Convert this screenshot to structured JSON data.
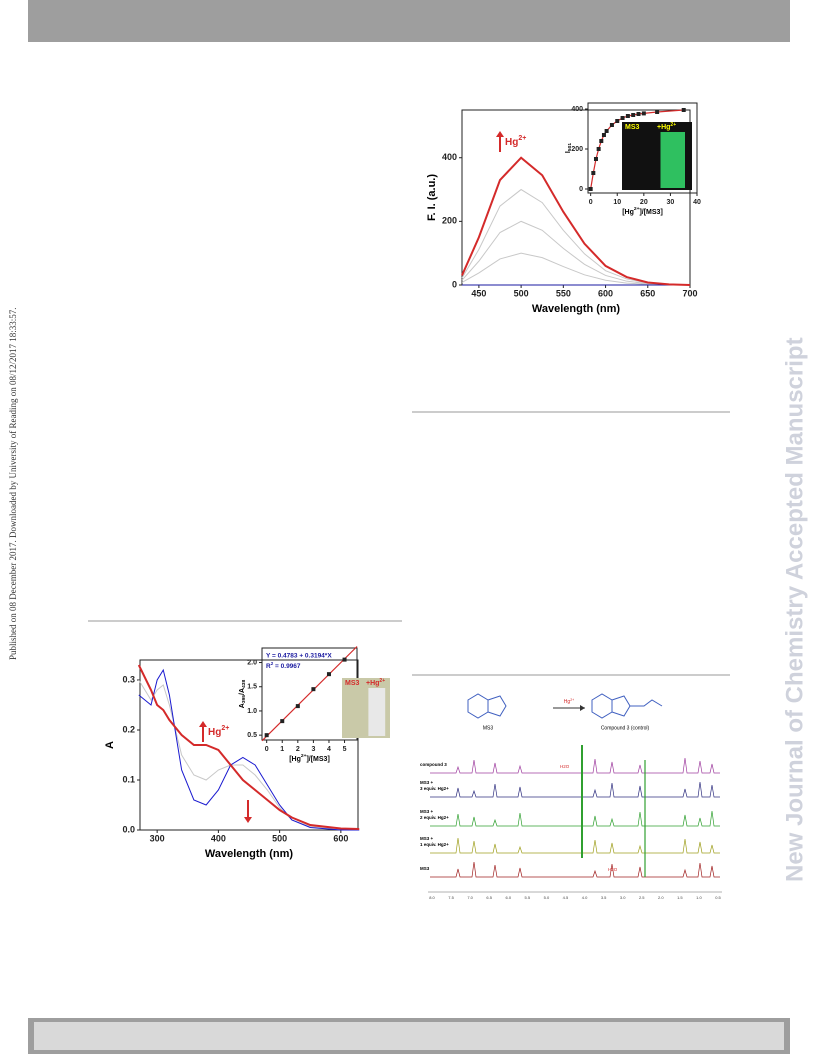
{
  "side_note": "Published on 08 December 2017. Downloaded by University of Reading on 08/12/2017 18:33:57.",
  "watermark": "New Journal of Chemistry Accepted Manuscript",
  "chart_data": [
    {
      "type": "line",
      "xlabel": "Wavelength (nm)",
      "ylabel": "F. I. (a.u.)",
      "annotation": [
        "Hg",
        "2+"
      ],
      "x": [
        430,
        450,
        475,
        500,
        525,
        550,
        575,
        600,
        625,
        650,
        675,
        700
      ],
      "series": [
        {
          "color": "#c8c8c8",
          "values": [
            8,
            38,
            82,
            100,
            86,
            58,
            32,
            15,
            6,
            2,
            0,
            0
          ]
        },
        {
          "color": "#c8c8c8",
          "values": [
            15,
            75,
            165,
            200,
            172,
            115,
            65,
            30,
            12,
            4,
            1,
            0
          ]
        },
        {
          "color": "#c8c8c8",
          "values": [
            22,
            112,
            248,
            300,
            259,
            172,
            98,
            45,
            19,
            6,
            2,
            0
          ]
        },
        {
          "color": "#1a1aa0",
          "values": [
            0,
            0,
            0,
            0,
            0,
            0,
            0,
            0,
            0,
            0,
            0,
            0
          ]
        },
        {
          "color": "#d42a2a",
          "values": [
            30,
            150,
            330,
            400,
            345,
            230,
            130,
            60,
            25,
            8,
            2,
            0
          ]
        }
      ],
      "xlim": [
        430,
        700
      ],
      "xticks": [
        450,
        500,
        550,
        600,
        650,
        700
      ],
      "ylim": [
        0,
        550
      ],
      "yticks": [
        0,
        200,
        400
      ]
    },
    {
      "type": "scatter",
      "xlabel": [
        "[Hg",
        "2+",
        "]/[MS3]"
      ],
      "ylabel": [
        "I",
        "501"
      ],
      "photo": [
        "MS3",
        "+Hg",
        "2+"
      ],
      "x": [
        0,
        1,
        2,
        3,
        4,
        5,
        6,
        8,
        10,
        12,
        14,
        16,
        18,
        20,
        25,
        35
      ],
      "series": [
        {
          "color": "#222222",
          "line_color": "#d42a2a",
          "values": [
            0,
            80,
            150,
            200,
            240,
            270,
            290,
            320,
            340,
            355,
            365,
            370,
            375,
            378,
            385,
            395
          ]
        }
      ],
      "xlim": [
        -1,
        40
      ],
      "xticks": [
        0,
        10,
        20,
        30,
        40
      ],
      "ylim": [
        -20,
        430
      ],
      "yticks": [
        0,
        200,
        400
      ]
    },
    {
      "type": "line",
      "xlabel": "Wavelength (nm)",
      "ylabel": "A",
      "annotation": [
        "Hg",
        "2+"
      ],
      "x": [
        270,
        290,
        300,
        310,
        320,
        340,
        360,
        380,
        400,
        420,
        440,
        460,
        480,
        500,
        520,
        550,
        600,
        630
      ],
      "series": [
        {
          "color": "#c8c8c8",
          "values": [
            0.3,
            0.26,
            0.28,
            0.29,
            0.25,
            0.15,
            0.11,
            0.1,
            0.12,
            0.13,
            0.13,
            0.11,
            0.08,
            0.045,
            0.02,
            0.007,
            0.001,
            0
          ]
        },
        {
          "color": "#1a1ad0",
          "values": [
            0.27,
            0.25,
            0.3,
            0.32,
            0.27,
            0.12,
            0.06,
            0.05,
            0.08,
            0.13,
            0.145,
            0.13,
            0.09,
            0.05,
            0.02,
            0.005,
            0,
            0
          ]
        },
        {
          "color": "#d42a2a",
          "values": [
            0.33,
            0.28,
            0.25,
            0.24,
            0.22,
            0.19,
            0.17,
            0.17,
            0.16,
            0.13,
            0.1,
            0.08,
            0.06,
            0.04,
            0.025,
            0.01,
            0.003,
            0.002
          ]
        }
      ],
      "xlim": [
        272,
        628
      ],
      "xticks": [
        300,
        400,
        500,
        600
      ],
      "ylim": [
        0,
        0.34
      ],
      "yticks": [
        {
          "value": 0,
          "label": "0.0"
        },
        0.1,
        0.2,
        0.3
      ]
    },
    {
      "type": "scatter",
      "xlabel": [
        "[Hg",
        "2+",
        "]/[MS3]"
      ],
      "ylabel": [
        "A",
        "395",
        "/A",
        "438"
      ],
      "equation": "Y = 0.4783 + 0.3194*X",
      "r2": [
        "R",
        "2",
        " = 0.9967"
      ],
      "photo": [
        "MS3",
        "+Hg",
        "2+"
      ],
      "fit": {
        "intercept": 0.4783,
        "slope": 0.3194
      },
      "x": [
        0,
        1,
        2,
        3,
        4,
        5
      ],
      "series": [
        {
          "color": "#222222",
          "values": [
            0.5,
            0.79,
            1.1,
            1.45,
            1.76,
            2.06
          ]
        }
      ],
      "xlim": [
        -0.3,
        5.8
      ],
      "xticks": [
        0,
        1,
        2,
        3,
        4,
        5
      ],
      "ylim": [
        0.4,
        2.3
      ],
      "yticks": [
        0.5,
        {
          "value": 1,
          "label": "1.0"
        },
        1.5,
        {
          "value": 2,
          "label": "2.0"
        }
      ]
    }
  ],
  "nmr": {
    "scheme": {
      "left": "MS3",
      "arrow": [
        "Hg",
        "2+"
      ],
      "right": "Compound 3 (control)"
    },
    "traces": [
      [
        "compound 3"
      ],
      [
        "MS3 +",
        "3 equiv. Hg2+"
      ],
      [
        "MS3 +",
        "2 equiv. Hg2+"
      ],
      [
        "MS3 +",
        "1 equiv. Hg2+"
      ],
      [
        "MS3"
      ]
    ],
    "water": [
      "H2O",
      "H2O"
    ],
    "ticks": [
      "8.0",
      "7.5",
      "7.0",
      "6.5",
      "6.0",
      "5.5",
      "5.0",
      "4.5",
      "4.0",
      "3.5",
      "3.0",
      "2.5",
      "2.0",
      "1.5",
      "1.0",
      "0.5"
    ]
  }
}
